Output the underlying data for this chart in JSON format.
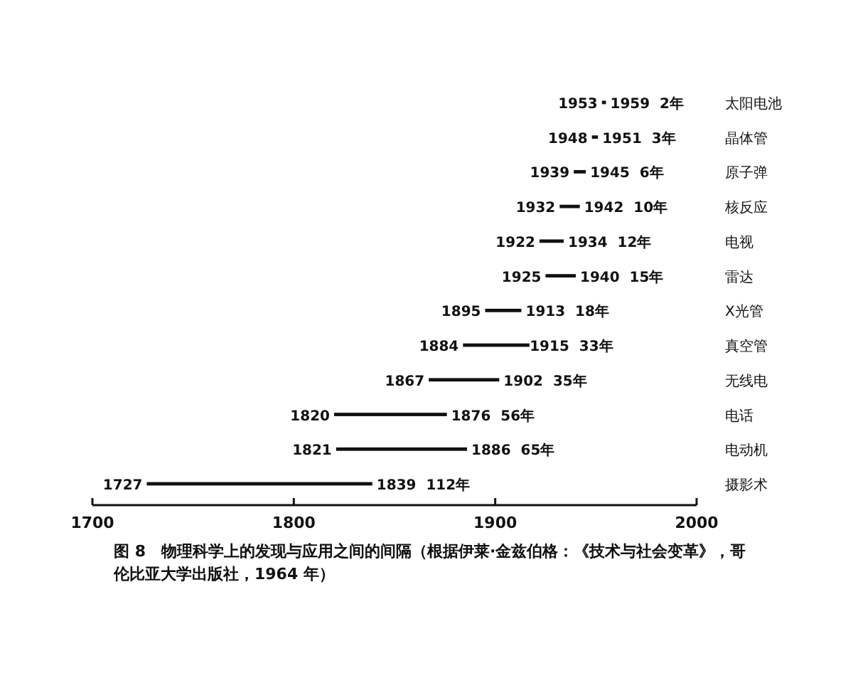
{
  "chart_data": {
    "type": "bar",
    "orientation": "horizontal",
    "title": "图 8　物理科学上的发现与应用之间的间隔（根据伊莱·金兹伯格：《技术与社会变革》，哥伦比亚大学出版社，1964 年）",
    "categories": [
      "太阳电池",
      "晶体管",
      "原子弹",
      "核反应",
      "电视",
      "雷达",
      "X光管",
      "真空管",
      "无线电",
      "电话",
      "电动机",
      "摄影术"
    ],
    "base": [
      1953,
      1948,
      1939,
      1932,
      1922,
      1925,
      1895,
      1884,
      1867,
      1820,
      1821,
      1727
    ],
    "values": [
      2,
      3,
      6,
      10,
      12,
      15,
      18,
      33,
      35,
      56,
      65,
      112
    ],
    "color": "#111111",
    "xlim": [
      1700,
      2000
    ],
    "xticks": [
      1700,
      1800,
      1900,
      2000
    ],
    "grid": false,
    "annotations": [
      {
        "text": "1953",
        "x": 1953,
        "y": "太阳电池"
      },
      {
        "text": "1959  2年",
        "x": 1955,
        "y": "太阳电池"
      },
      {
        "text": "1948",
        "x": 1948,
        "y": "晶体管"
      },
      {
        "text": "1951  3年",
        "x": 1951,
        "y": "晶体管"
      },
      {
        "text": "1939",
        "x": 1939,
        "y": "原子弹"
      },
      {
        "text": "1945  6年",
        "x": 1945,
        "y": "原子弹"
      },
      {
        "text": "1932",
        "x": 1932,
        "y": "核反应"
      },
      {
        "text": "1942  10年",
        "x": 1942,
        "y": "核反应"
      },
      {
        "text": "1922",
        "x": 1922,
        "y": "电视"
      },
      {
        "text": "1934  12年",
        "x": 1934,
        "y": "电视"
      },
      {
        "text": "1925",
        "x": 1925,
        "y": "雷达"
      },
      {
        "text": "1940  15年",
        "x": 1940,
        "y": "雷达"
      },
      {
        "text": "1895",
        "x": 1895,
        "y": "X光管"
      },
      {
        "text": "1913  18年",
        "x": 1913,
        "y": "X光管"
      },
      {
        "text": "1884",
        "x": 1884,
        "y": "真空管"
      },
      {
        "text": "1915  33年",
        "x": 1915,
        "y": "真空管"
      },
      {
        "text": "1867",
        "x": 1867,
        "y": "无线电"
      },
      {
        "text": "1902  35年",
        "x": 1902,
        "y": "无线电"
      },
      {
        "text": "1820",
        "x": 1820,
        "y": "电话"
      },
      {
        "text": "1876  56年",
        "x": 1876,
        "y": "电话"
      },
      {
        "text": "1821",
        "x": 1821,
        "y": "电动机"
      },
      {
        "text": "1886  65年",
        "x": 1886,
        "y": "电动机"
      },
      {
        "text": "1727",
        "x": 1727,
        "y": "摄影术"
      },
      {
        "text": "1839  112年",
        "x": 1839,
        "y": "摄影术"
      }
    ]
  }
}
